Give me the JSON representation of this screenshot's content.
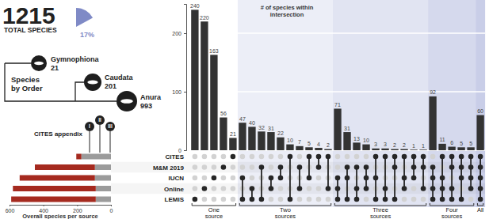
{
  "chart_data": {
    "type": "upset",
    "y_label": "# of species within intersection",
    "sets": [
      "CITES",
      "M&M 2019",
      "IUCN",
      "Online",
      "LEMIS"
    ],
    "groups": [
      "One source",
      "Two sources",
      "Three sources",
      "Four sources",
      "All"
    ],
    "values": [
      240,
      220,
      163,
      56,
      21,
      47,
      40,
      32,
      31,
      22,
      10,
      7,
      5,
      4,
      2,
      71,
      31,
      13,
      10,
      3,
      3,
      2,
      2,
      1,
      1,
      92,
      11,
      6,
      5,
      5,
      60
    ],
    "members": [
      [
        "LEMIS"
      ],
      [
        "Online"
      ],
      [
        "IUCN"
      ],
      [
        "M&M 2019"
      ],
      [
        "CITES"
      ],
      [
        "IUCN",
        "LEMIS"
      ],
      [
        "Online",
        "LEMIS"
      ],
      [
        "M&M 2019",
        "LEMIS"
      ],
      [
        "IUCN",
        "Online"
      ],
      [
        "M&M 2019",
        "IUCN"
      ],
      [
        "CITES",
        "LEMIS"
      ],
      [
        "M&M 2019",
        "Online"
      ],
      [
        "CITES",
        "IUCN"
      ],
      [
        "CITES",
        "M&M 2019"
      ],
      [
        "CITES",
        "Online"
      ],
      [
        "IUCN",
        "Online",
        "LEMIS"
      ],
      [
        "M&M 2019",
        "IUCN",
        "LEMIS"
      ],
      [
        "M&M 2019",
        "Online",
        "LEMIS"
      ],
      [
        "M&M 2019",
        "IUCN",
        "Online"
      ],
      [
        "CITES",
        "IUCN",
        "LEMIS"
      ],
      [
        "CITES",
        "Online",
        "LEMIS"
      ],
      [
        "CITES",
        "M&M 2019",
        "LEMIS"
      ],
      [
        "CITES",
        "IUCN",
        "Online"
      ],
      [
        "CITES",
        "M&M 2019",
        "IUCN"
      ],
      [
        "CITES",
        "M&M 2019",
        "Online"
      ],
      [
        "M&M 2019",
        "IUCN",
        "Online",
        "LEMIS"
      ],
      [
        "CITES",
        "IUCN",
        "Online",
        "LEMIS"
      ],
      [
        "CITES",
        "M&M 2019",
        "Online",
        "LEMIS"
      ],
      [
        "CITES",
        "M&M 2019",
        "IUCN",
        "LEMIS"
      ],
      [
        "CITES",
        "M&M 2019",
        "IUCN",
        "Online"
      ],
      [
        "CITES",
        "M&M 2019",
        "IUCN",
        "Online",
        "LEMIS"
      ]
    ],
    "color": "#333333",
    "data_labels": true,
    "ylim": [
      0,
      250
    ],
    "yticks": [
      0,
      100,
      200
    ],
    "grid": true,
    "set_sizes": {
      "x_label": "Overall species per source",
      "orientation": "horizontal",
      "stacked": true,
      "xlim": [
        0,
        600
      ],
      "xticks": [
        0,
        200,
        400,
        600
      ],
      "series": [
        {
          "color": "#9b9b9b",
          "values": [
            175,
            95,
            95,
            90,
            90
          ]
        },
        {
          "color": "#a52a1f",
          "values": [
            30,
            355,
            445,
            490,
            500
          ]
        }
      ]
    }
  },
  "summary": {
    "total": 1215,
    "total_label": "TOTAL SPECIES",
    "share": {
      "value": 17,
      "label": "17%",
      "color": "#7f8ac6"
    },
    "orders_label": "Species by Order",
    "orders": [
      {
        "name": "Gymnophiona",
        "count": 21
      },
      {
        "name": "Caudata",
        "count": 201
      },
      {
        "name": "Anura",
        "count": 993
      }
    ]
  },
  "cites_appendix": {
    "label": "CITES appendix",
    "appendices": [
      "I",
      "II",
      "III"
    ]
  }
}
